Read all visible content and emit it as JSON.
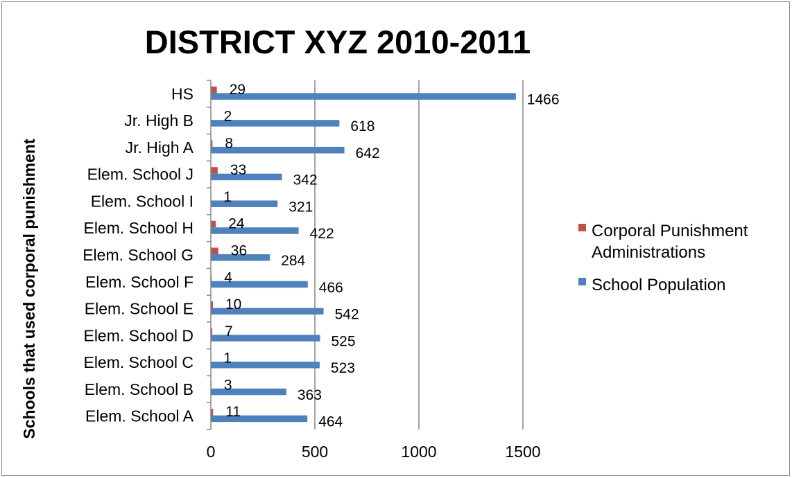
{
  "chart_data": {
    "type": "bar",
    "orientation": "horizontal",
    "title": "DISTRICT XYZ 2010-2011",
    "xlabel": "",
    "ylabel": "Schools that used corporal punishment",
    "categories": [
      "HS",
      "Jr. High B",
      "Jr. High A",
      "Elem. School J",
      "Elem. School I",
      "Elem. School H",
      "Elem. School G",
      "Elem. School F",
      "Elem. School E",
      "Elem. School D",
      "Elem. School C",
      "Elem. School B",
      "Elem. School A"
    ],
    "series": [
      {
        "name": "Corporal Punishment Administrations",
        "color": "#c0504d",
        "values": [
          29,
          2,
          8,
          33,
          1,
          24,
          36,
          4,
          10,
          7,
          1,
          3,
          11
        ]
      },
      {
        "name": "School Population",
        "color": "#4f81bd",
        "values": [
          1466,
          618,
          642,
          342,
          321,
          422,
          284,
          466,
          542,
          525,
          523,
          363,
          464
        ]
      }
    ],
    "xlim": [
      0,
      1500
    ],
    "xticks": [
      0,
      500,
      1000,
      1500
    ],
    "grid": "vertical",
    "legend_position": "right",
    "legend_lines": [
      [
        "Corporal Punishment",
        "Administrations"
      ],
      [
        "School Population"
      ]
    ]
  }
}
